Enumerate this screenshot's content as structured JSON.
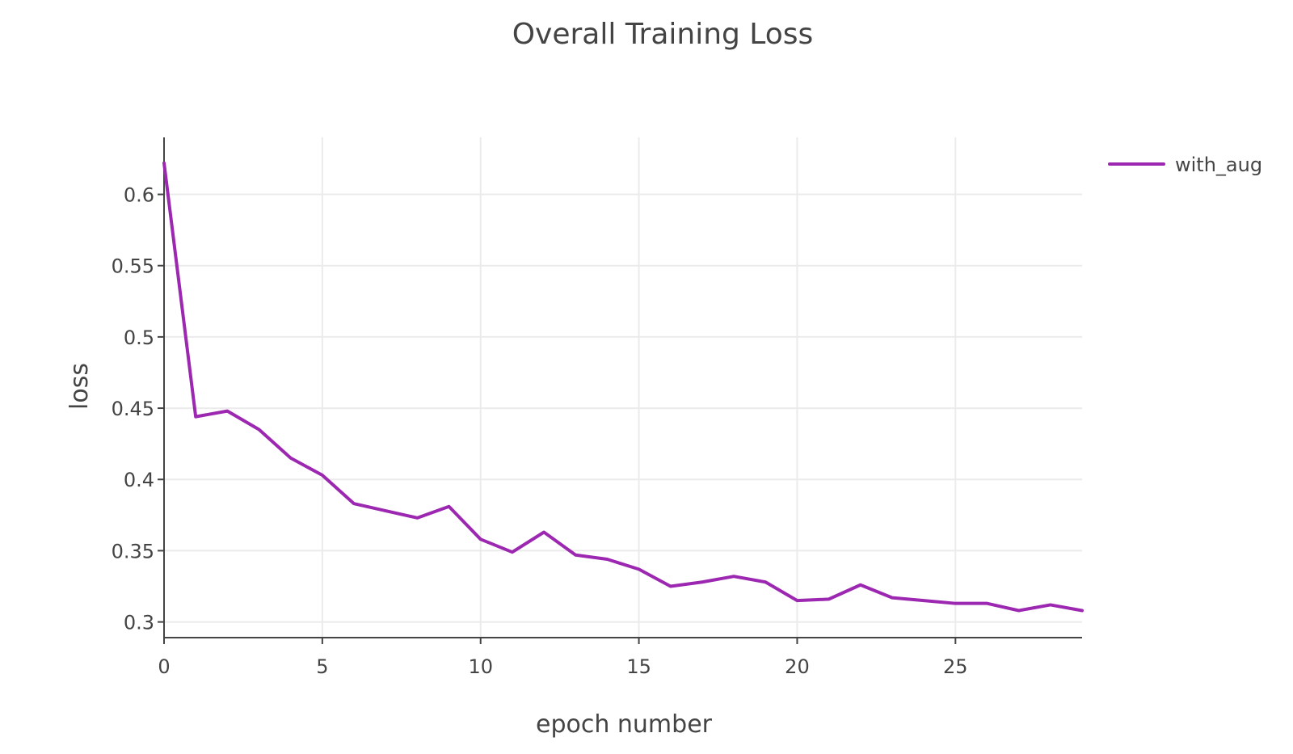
{
  "chart_data": {
    "type": "line",
    "title": "Overall Training Loss",
    "xlabel": "epoch number",
    "ylabel": "loss",
    "xlim": [
      0,
      29
    ],
    "ylim": [
      0.289,
      0.64
    ],
    "xticks": [
      0,
      5,
      10,
      15,
      20,
      25
    ],
    "yticks": [
      0.3,
      0.35,
      0.4,
      0.45,
      0.5,
      0.55,
      0.6
    ],
    "xtick_labels": [
      "0",
      "5",
      "10",
      "15",
      "20",
      "25"
    ],
    "ytick_labels": [
      "0.3",
      "0.35",
      "0.4",
      "0.45",
      "0.5",
      "0.55",
      "0.6"
    ],
    "grid": true,
    "legend_position": "top-right, outside plot area",
    "series": [
      {
        "name": "with_aug",
        "color": "#9c27b0",
        "x": [
          0,
          1,
          2,
          3,
          4,
          5,
          6,
          7,
          8,
          9,
          10,
          11,
          12,
          13,
          14,
          15,
          16,
          17,
          18,
          19,
          20,
          21,
          22,
          23,
          24,
          25,
          26,
          27,
          28,
          29
        ],
        "y": [
          0.622,
          0.444,
          0.448,
          0.435,
          0.415,
          0.403,
          0.383,
          0.378,
          0.373,
          0.381,
          0.358,
          0.349,
          0.363,
          0.347,
          0.344,
          0.337,
          0.325,
          0.328,
          0.332,
          0.328,
          0.315,
          0.316,
          0.326,
          0.317,
          0.315,
          0.313,
          0.313,
          0.308,
          0.312,
          0.308
        ]
      }
    ]
  }
}
